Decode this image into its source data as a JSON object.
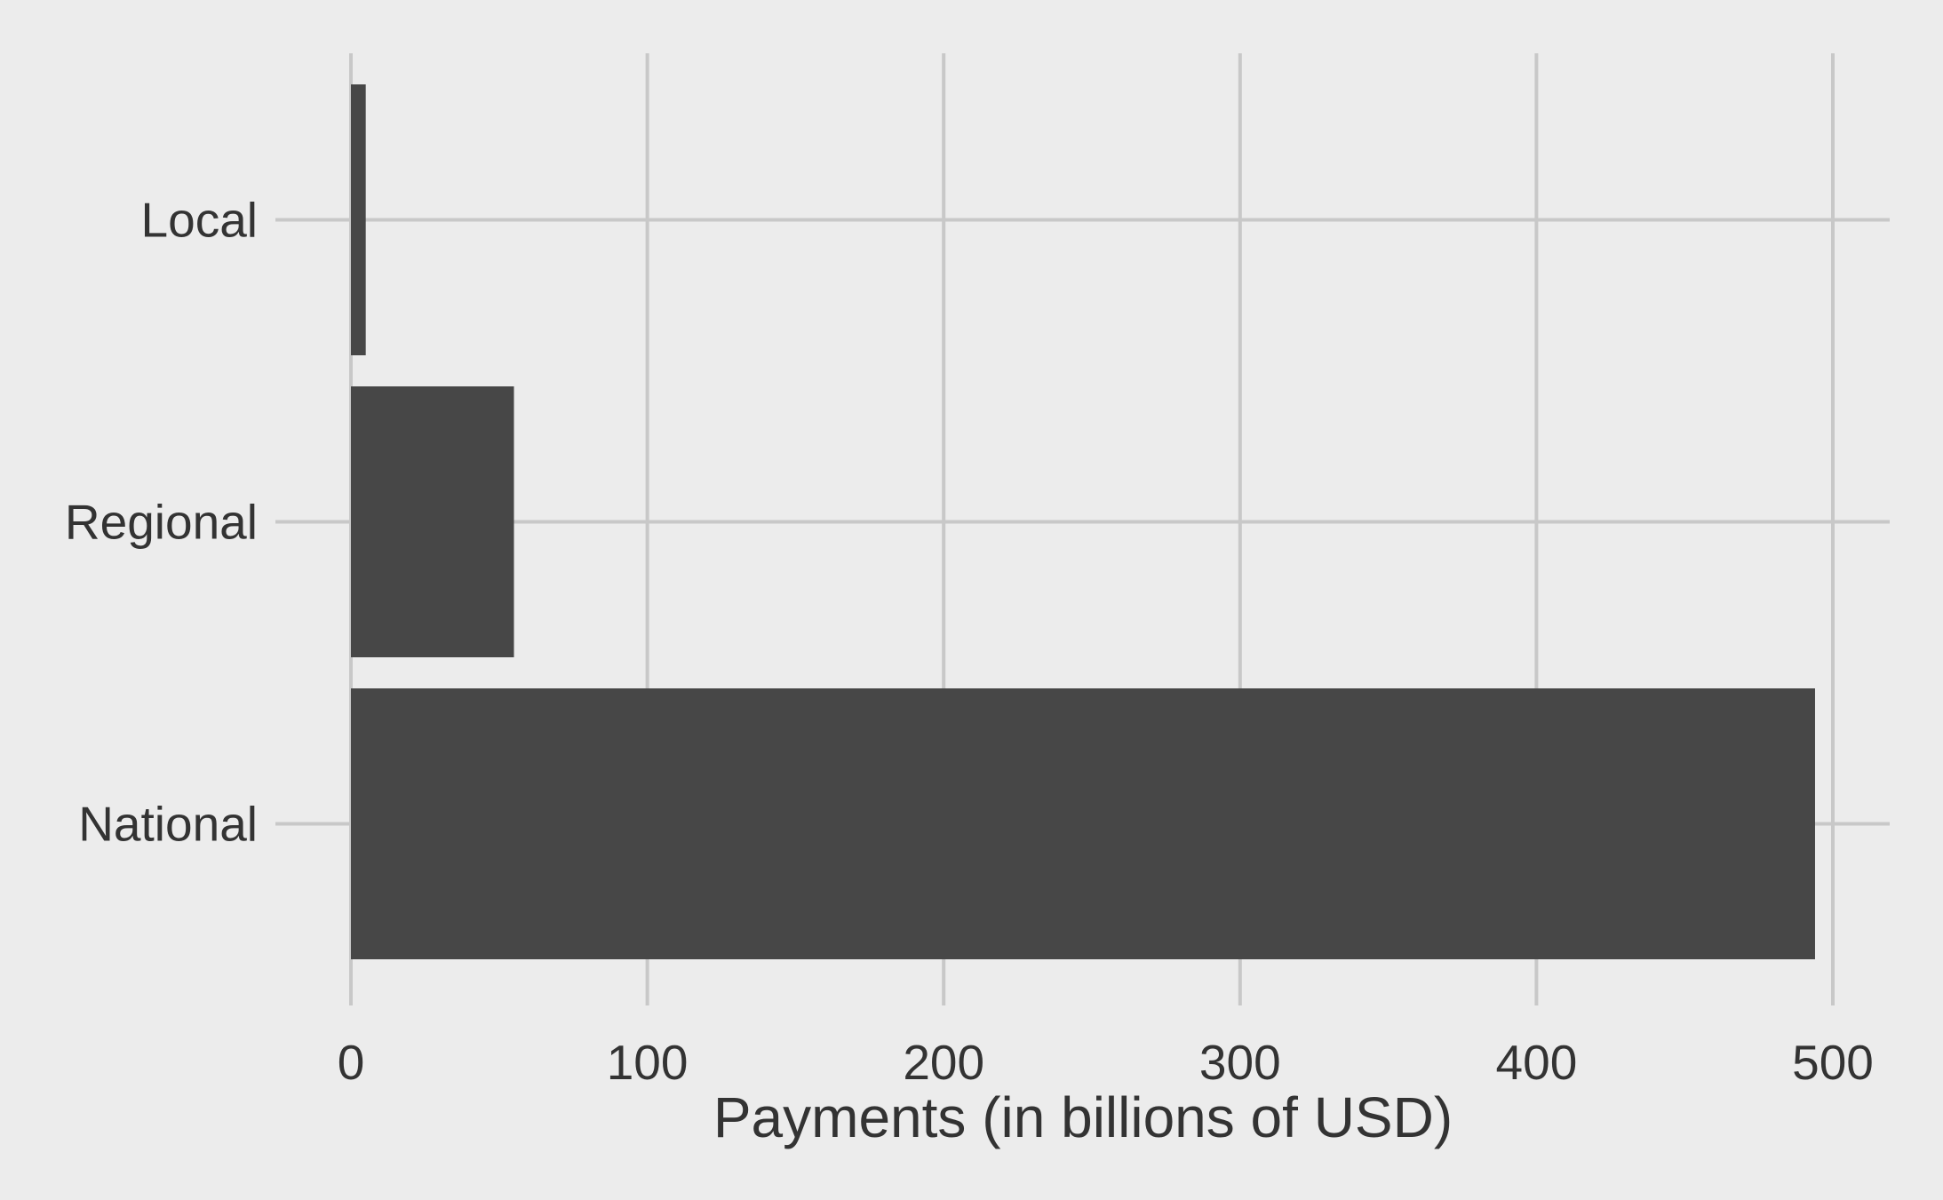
{
  "chart_data": {
    "type": "bar",
    "orientation": "horizontal",
    "categories": [
      "Local",
      "Regional",
      "National"
    ],
    "values": [
      5,
      55,
      494
    ],
    "title": "",
    "xlabel": "Payments (in billions of USD)",
    "ylabel": "",
    "xlim": [
      0,
      520
    ],
    "xticks": [
      0,
      100,
      200,
      300,
      400,
      500
    ],
    "grid": true,
    "bar_color": "#474747",
    "grid_color": "#c8c8c8",
    "background_color": "#ececec",
    "text_color": "#333333"
  }
}
